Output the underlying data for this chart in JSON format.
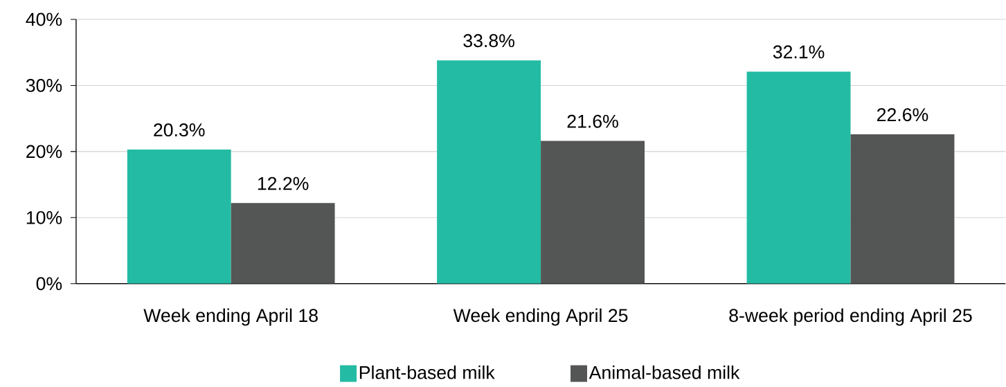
{
  "chart_data": {
    "type": "bar",
    "categories": [
      "Week ending April 18",
      "Week ending April 25",
      "8-week period ending April 25"
    ],
    "series": [
      {
        "name": "Plant-based milk",
        "color": "#23bba3",
        "values": [
          20.3,
          33.8,
          32.1
        ],
        "value_labels": [
          "20.3%",
          "33.8%",
          "32.1%"
        ]
      },
      {
        "name": "Animal-based milk",
        "color": "#545655",
        "values": [
          12.2,
          21.6,
          22.6
        ],
        "value_labels": [
          "12.2%",
          "21.6%",
          "22.6%"
        ]
      }
    ],
    "ylim": [
      0,
      40
    ],
    "yticks": [
      {
        "value": 0,
        "label": "0%"
      },
      {
        "value": 10,
        "label": "10%"
      },
      {
        "value": 20,
        "label": "20%"
      },
      {
        "value": 30,
        "label": "30%"
      },
      {
        "value": 40,
        "label": "40%"
      }
    ],
    "grid": "y",
    "legend": "bottom"
  }
}
